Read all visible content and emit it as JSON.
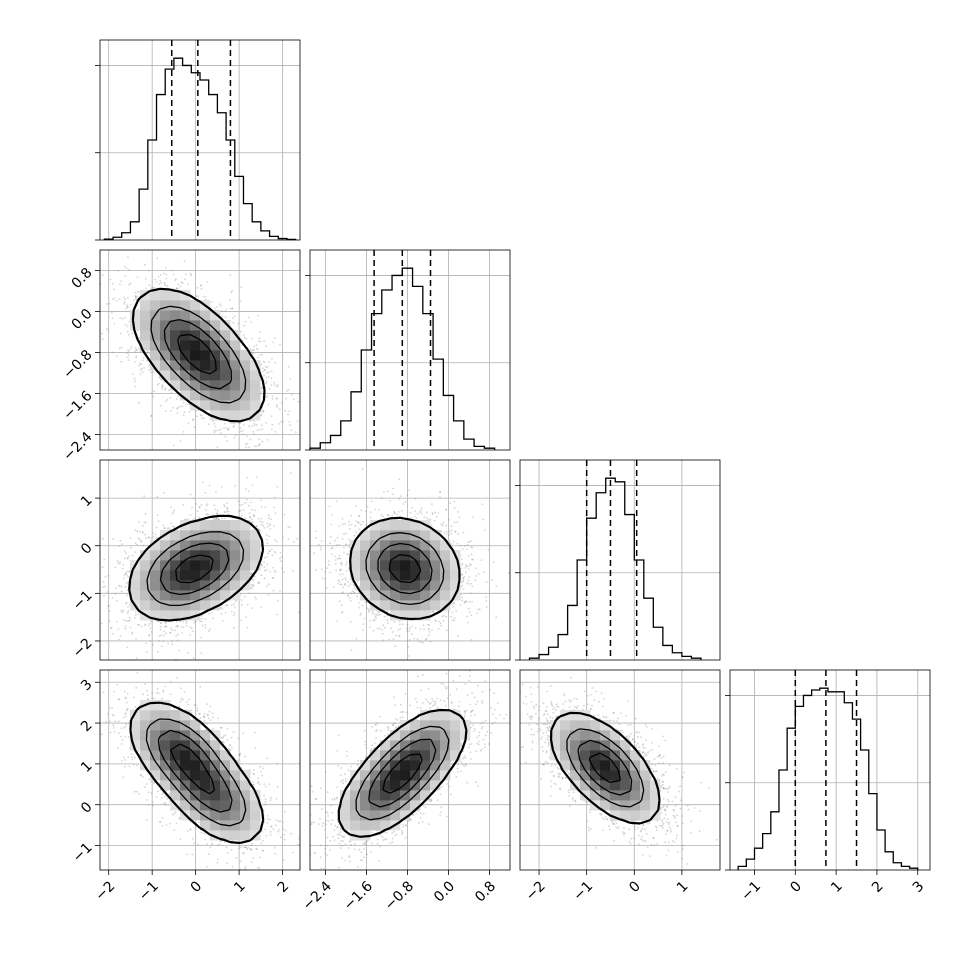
{
  "chart_data": {
    "type": "corner",
    "n_params": 4,
    "grid": true,
    "quantiles": [
      0.16,
      0.5,
      0.84
    ],
    "params": [
      {
        "range": [
          -2.2,
          2.4
        ],
        "ticks": [
          -2,
          -1,
          0,
          1,
          2
        ],
        "tick_labels": [
          "−2",
          "−1",
          "0",
          "1",
          "2"
        ],
        "quantile_values": [
          -0.55,
          0.05,
          0.8
        ],
        "hist": {
          "edges": [
            -2.1,
            -1.9,
            -1.7,
            -1.5,
            -1.3,
            -1.1,
            -0.9,
            -0.7,
            -0.5,
            -0.3,
            -0.1,
            0.1,
            0.3,
            0.5,
            0.7,
            0.9,
            1.1,
            1.3,
            1.5,
            1.7,
            1.9,
            2.1,
            2.3
          ],
          "counts": [
            0.005,
            0.015,
            0.04,
            0.1,
            0.28,
            0.55,
            0.8,
            0.94,
            1.0,
            0.96,
            0.92,
            0.88,
            0.8,
            0.7,
            0.55,
            0.35,
            0.2,
            0.1,
            0.05,
            0.02,
            0.008,
            0.003
          ]
        }
      },
      {
        "range": [
          -2.7,
          1.2
        ],
        "ticks": [
          -2.4,
          -1.6,
          -0.8,
          0.0,
          0.8
        ],
        "tick_labels": [
          "−2.4",
          "−1.6",
          "−0.8",
          "0.0",
          "0.8"
        ],
        "quantile_values": [
          -1.45,
          -0.9,
          -0.35
        ],
        "hist": {
          "edges": [
            -2.7,
            -2.5,
            -2.3,
            -2.1,
            -1.9,
            -1.7,
            -1.5,
            -1.3,
            -1.1,
            -0.9,
            -0.7,
            -0.5,
            -0.3,
            -0.1,
            0.1,
            0.3,
            0.5,
            0.7,
            0.9
          ],
          "counts": [
            0.01,
            0.04,
            0.08,
            0.16,
            0.32,
            0.55,
            0.75,
            0.88,
            0.96,
            1.0,
            0.9,
            0.75,
            0.5,
            0.3,
            0.16,
            0.06,
            0.02,
            0.01
          ]
        }
      },
      {
        "range": [
          -2.4,
          1.8
        ],
        "ticks": [
          -2,
          -1,
          0,
          1
        ],
        "tick_labels": [
          "−2",
          "−1",
          "0",
          "1"
        ],
        "quantile_values": [
          -1.0,
          -0.5,
          0.05
        ],
        "hist": {
          "edges": [
            -2.2,
            -2.0,
            -1.8,
            -1.6,
            -1.4,
            -1.2,
            -1.0,
            -0.8,
            -0.6,
            -0.4,
            -0.2,
            0.0,
            0.2,
            0.4,
            0.6,
            0.8,
            1.0,
            1.2,
            1.4
          ],
          "counts": [
            0.01,
            0.03,
            0.07,
            0.14,
            0.3,
            0.55,
            0.78,
            0.92,
            1.0,
            0.98,
            0.8,
            0.55,
            0.34,
            0.18,
            0.08,
            0.04,
            0.02,
            0.01
          ]
        }
      },
      {
        "range": [
          -1.6,
          3.3
        ],
        "ticks": [
          -1,
          0,
          1,
          2,
          3
        ],
        "tick_labels": [
          "−1",
          "0",
          "1",
          "2",
          "3"
        ],
        "quantile_values": [
          0.0,
          0.75,
          1.5
        ],
        "hist": {
          "edges": [
            -1.4,
            -1.2,
            -1.0,
            -0.8,
            -0.6,
            -0.4,
            -0.2,
            0.0,
            0.2,
            0.4,
            0.6,
            0.8,
            1.0,
            1.2,
            1.4,
            1.6,
            1.8,
            2.0,
            2.2,
            2.4,
            2.6,
            2.8,
            3.0
          ],
          "counts": [
            0.02,
            0.06,
            0.12,
            0.2,
            0.32,
            0.55,
            0.78,
            0.9,
            0.96,
            0.99,
            1.0,
            0.98,
            0.98,
            0.92,
            0.83,
            0.66,
            0.42,
            0.22,
            0.1,
            0.04,
            0.02,
            0.01
          ]
        }
      }
    ],
    "scatter": [
      {
        "pair": [
          1,
          0
        ],
        "modes": [
          [
            -0.25,
            -0.55,
            0.55
          ],
          [
            0.45,
            -1.2,
            0.45
          ]
        ],
        "rho": -0.45,
        "sd": [
          0.62,
          0.52
        ]
      },
      {
        "pair": [
          2,
          0
        ],
        "modes": [
          [
            -0.35,
            -0.6,
            0.6
          ],
          [
            0.45,
            -0.3,
            0.45
          ]
        ],
        "rho": 0.3,
        "sd": [
          0.62,
          0.5
        ]
      },
      {
        "pair": [
          2,
          1
        ],
        "modes": [
          [
            -0.95,
            -0.4,
            0.6
          ],
          [
            -0.7,
            -0.6,
            0.4
          ]
        ],
        "rho": -0.1,
        "sd": [
          0.5,
          0.5
        ]
      },
      {
        "pair": [
          3,
          0
        ],
        "modes": [
          [
            -0.35,
            1.3,
            0.55
          ],
          [
            0.45,
            0.2,
            0.45
          ]
        ],
        "rho": -0.5,
        "sd": [
          0.58,
          0.6
        ]
      },
      {
        "pair": [
          3,
          1
        ],
        "modes": [
          [
            -1.2,
            0.35,
            0.5
          ],
          [
            -0.6,
            1.2,
            0.5
          ]
        ],
        "rho": 0.55,
        "sd": [
          0.5,
          0.6
        ]
      },
      {
        "pair": [
          3,
          2
        ],
        "modes": [
          [
            -0.75,
            1.1,
            0.6
          ],
          [
            -0.4,
            0.6,
            0.4
          ]
        ],
        "rho": -0.55,
        "sd": [
          0.52,
          0.6
        ]
      }
    ]
  }
}
